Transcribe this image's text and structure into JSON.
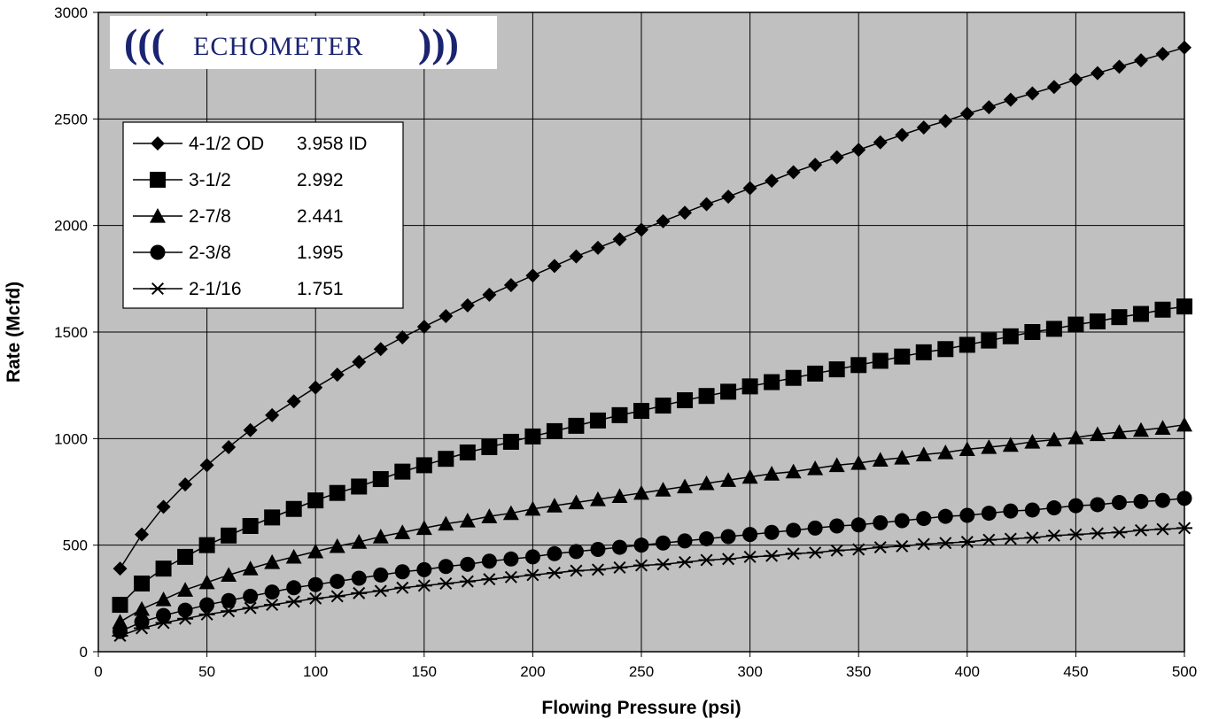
{
  "chart_data": {
    "type": "line",
    "title": "",
    "xlabel": "Flowing Pressure (psi)",
    "ylabel": "Rate (Mcfd)",
    "xlim": [
      0,
      500
    ],
    "ylim": [
      0,
      3000
    ],
    "x_ticks": [
      "0",
      "50",
      "100",
      "150",
      "200",
      "250",
      "300",
      "350",
      "400",
      "450",
      "500"
    ],
    "y_ticks": [
      "0",
      "500",
      "1000",
      "1500",
      "2000",
      "2500",
      "3000"
    ],
    "grid": true,
    "plot_background": "#c0c0c0",
    "legend_position": "top-left",
    "x": [
      10,
      20,
      30,
      40,
      50,
      60,
      70,
      80,
      90,
      100,
      110,
      120,
      130,
      140,
      150,
      160,
      170,
      180,
      190,
      200,
      210,
      220,
      230,
      240,
      250,
      260,
      270,
      280,
      290,
      300,
      310,
      320,
      330,
      340,
      350,
      360,
      370,
      380,
      390,
      400,
      410,
      420,
      430,
      440,
      450,
      460,
      470,
      480,
      490,
      500
    ],
    "series": [
      {
        "name": "4-1/2 OD",
        "id_label": "3.958 ID",
        "marker": "diamond",
        "values": [
          390,
          550,
          680,
          785,
          875,
          960,
          1040,
          1110,
          1175,
          1240,
          1300,
          1360,
          1420,
          1475,
          1525,
          1575,
          1625,
          1675,
          1720,
          1765,
          1810,
          1855,
          1895,
          1935,
          1980,
          2020,
          2060,
          2100,
          2135,
          2175,
          2210,
          2250,
          2285,
          2320,
          2355,
          2390,
          2425,
          2460,
          2490,
          2525,
          2555,
          2590,
          2620,
          2650,
          2685,
          2715,
          2745,
          2775,
          2805,
          2835
        ]
      },
      {
        "name": "3-1/2",
        "id_label": "2.992",
        "marker": "square",
        "values": [
          220,
          320,
          390,
          445,
          500,
          545,
          590,
          630,
          670,
          710,
          745,
          775,
          810,
          845,
          875,
          905,
          935,
          960,
          985,
          1010,
          1035,
          1060,
          1085,
          1110,
          1130,
          1155,
          1180,
          1200,
          1220,
          1245,
          1265,
          1285,
          1305,
          1325,
          1345,
          1365,
          1385,
          1405,
          1420,
          1440,
          1460,
          1480,
          1500,
          1515,
          1535,
          1550,
          1570,
          1585,
          1605,
          1620
        ]
      },
      {
        "name": "2-7/8",
        "id_label": "2.441",
        "marker": "triangle",
        "values": [
          140,
          200,
          245,
          290,
          325,
          360,
          390,
          420,
          445,
          470,
          495,
          515,
          540,
          560,
          580,
          600,
          615,
          635,
          650,
          670,
          685,
          700,
          715,
          730,
          745,
          760,
          775,
          790,
          805,
          820,
          835,
          845,
          860,
          875,
          885,
          900,
          910,
          925,
          935,
          950,
          960,
          970,
          985,
          995,
          1005,
          1020,
          1030,
          1040,
          1050,
          1065
        ]
      },
      {
        "name": "2-3/8",
        "id_label": "1.995",
        "marker": "circle",
        "values": [
          95,
          140,
          170,
          195,
          220,
          240,
          260,
          280,
          300,
          315,
          330,
          345,
          360,
          375,
          385,
          400,
          410,
          425,
          435,
          445,
          460,
          470,
          480,
          490,
          500,
          510,
          520,
          530,
          540,
          550,
          560,
          570,
          580,
          590,
          595,
          605,
          615,
          625,
          635,
          640,
          650,
          660,
          665,
          675,
          685,
          690,
          700,
          705,
          710,
          720
        ]
      },
      {
        "name": "2-1/16",
        "id_label": "1.751",
        "marker": "asterisk",
        "values": [
          75,
          110,
          135,
          155,
          175,
          190,
          205,
          220,
          235,
          250,
          260,
          275,
          285,
          300,
          310,
          320,
          330,
          340,
          350,
          360,
          370,
          380,
          385,
          395,
          405,
          410,
          420,
          430,
          435,
          445,
          450,
          460,
          465,
          475,
          480,
          490,
          495,
          505,
          510,
          515,
          525,
          530,
          535,
          545,
          550,
          555,
          560,
          570,
          575,
          580
        ]
      }
    ]
  },
  "logo": {
    "left_waves": "(((",
    "wordmark": "ECHOMETER",
    "right_waves": ")))",
    "color": "#1b2470"
  },
  "colors": {
    "plot_bg": "#c0c0c0",
    "grid": "#000000",
    "series": "#000000"
  }
}
